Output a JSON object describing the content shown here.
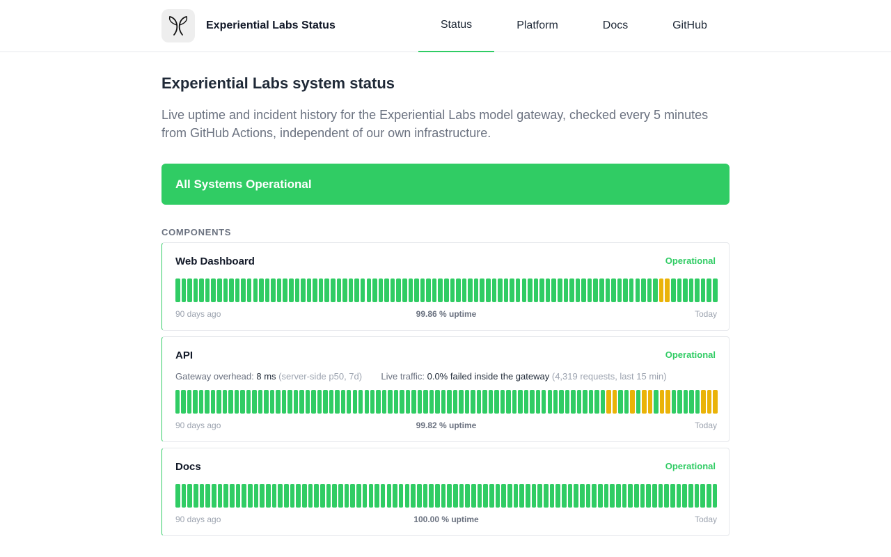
{
  "header": {
    "brand": "Experiential Labs Status",
    "logo_icon": "butterfly-logo-icon",
    "nav": [
      {
        "label": "Status",
        "active": true
      },
      {
        "label": "Platform",
        "active": false
      },
      {
        "label": "Docs",
        "active": false
      },
      {
        "label": "GitHub",
        "active": false
      }
    ]
  },
  "page": {
    "title": "Experiential Labs system status",
    "description": "Live uptime and incident history for the Experiential Labs model gateway, checked every 5 minutes from GitHub Actions, independent of our own infrastructure.",
    "banner": "All Systems Operational",
    "section_label": "COMPONENTS"
  },
  "colors": {
    "operational": "#30cc64",
    "degraded": "#eab308"
  },
  "components": [
    {
      "name": "Web Dashboard",
      "status": "Operational",
      "uptime_value": "99.86",
      "uptime_suffix": " % uptime",
      "range_start": "90 days ago",
      "range_end": "Today",
      "days": "ooooooooooooooooooooooooooooooooooooooooooooooooooooooooooooooooooooooooooooooooowwoooooooo"
    },
    {
      "name": "API",
      "status": "Operational",
      "metrics": {
        "overhead_label": "Gateway overhead:",
        "overhead_value": "8 ms",
        "overhead_note": "(server-side p50, 7d)",
        "traffic_label": "Live traffic:",
        "traffic_value": "0.0% failed inside the gateway",
        "traffic_note": "(4,319 requests, last 15 min)"
      },
      "uptime_value": "99.82",
      "uptime_suffix": " % uptime",
      "range_start": "90 days ago",
      "range_end": "Today",
      "days": "ooooooooooooooooooooooooooooooooooooooooooooooooooooooooooooooooooooooooowwoowowwowwooooowww"
    },
    {
      "name": "Docs",
      "status": "Operational",
      "uptime_value": "100.00",
      "uptime_suffix": " % uptime",
      "range_start": "90 days ago",
      "range_end": "Today",
      "days": "oooooooooooooooooooooooooooooooooooooooooooooooooooooooooooooooooooooooooooooooooooooooooo"
    }
  ]
}
